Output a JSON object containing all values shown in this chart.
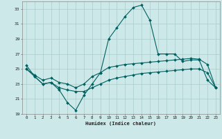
{
  "xlabel": "Humidex (Indice chaleur)",
  "bg_color": "#cce8e8",
  "grid_color": "#aacccc",
  "line_color": "#006060",
  "x_values": [
    0,
    1,
    2,
    3,
    4,
    5,
    6,
    7,
    8,
    9,
    10,
    11,
    12,
    13,
    14,
    15,
    16,
    17,
    18,
    19,
    20,
    21,
    22,
    23
  ],
  "line1_y": [
    25.5,
    24.0,
    23.0,
    23.2,
    22.2,
    20.5,
    19.5,
    21.5,
    23.0,
    24.5,
    29.0,
    30.5,
    32.0,
    33.2,
    33.5,
    31.5,
    27.0,
    27.0,
    27.0,
    26.0,
    26.2,
    26.2,
    23.5,
    22.5
  ],
  "line2_y": [
    25.0,
    24.2,
    23.5,
    23.8,
    23.2,
    23.0,
    22.5,
    23.0,
    24.0,
    24.5,
    25.2,
    25.4,
    25.6,
    25.7,
    25.8,
    25.9,
    26.0,
    26.1,
    26.2,
    26.3,
    26.4,
    26.3,
    25.6,
    22.5
  ],
  "line3_y": [
    25.0,
    24.0,
    23.0,
    23.2,
    22.5,
    22.2,
    22.0,
    22.0,
    22.5,
    23.0,
    23.5,
    23.8,
    24.0,
    24.2,
    24.4,
    24.5,
    24.6,
    24.7,
    24.8,
    24.9,
    25.0,
    25.0,
    24.5,
    22.5
  ],
  "ylim_min": 19,
  "ylim_max": 34,
  "yticks": [
    19,
    21,
    23,
    25,
    27,
    29,
    31,
    33
  ],
  "xticks": [
    0,
    1,
    2,
    3,
    4,
    5,
    6,
    7,
    8,
    9,
    10,
    11,
    12,
    13,
    14,
    15,
    16,
    17,
    18,
    19,
    20,
    21,
    22,
    23
  ]
}
